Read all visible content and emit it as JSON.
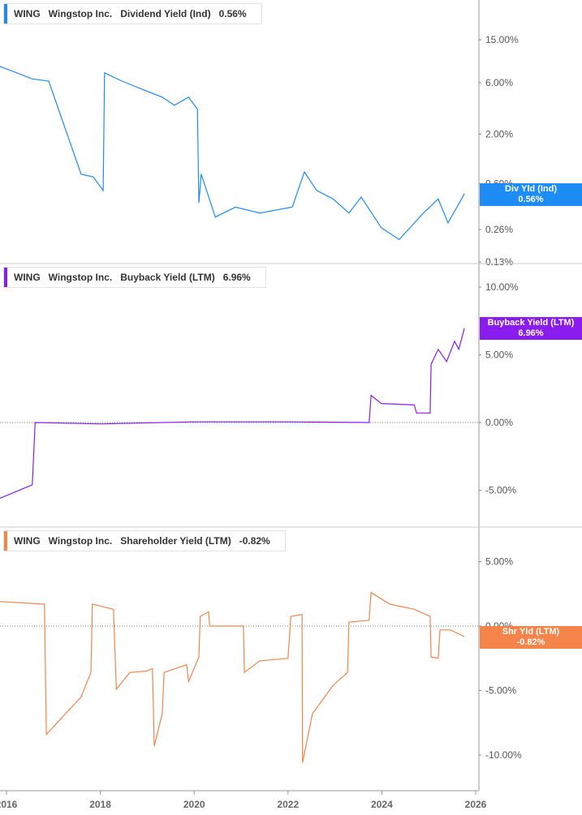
{
  "chart_data": [
    {
      "type": "line",
      "ticker": "WING",
      "company": "Wingstop Inc.",
      "series_name": "Dividend Yield (Ind)",
      "value_label": "0.56%",
      "tag_title": "Div Yld (Ind)",
      "tag_value": "0.56%",
      "color": "#1e8cf5",
      "scale": "log",
      "yticks": [
        "15.00%",
        "6.00%",
        "2.00%",
        "0.69%",
        "0.26%",
        "0.13%"
      ],
      "ytick_values": [
        15,
        6,
        2,
        0.69,
        0.26,
        0.13
      ],
      "x": [
        2015.86,
        2016.55,
        2016.9,
        2017.59,
        2017.85,
        2018.06,
        2018.09,
        2018.46,
        2018.89,
        2019.32,
        2019.58,
        2019.88,
        2020.07,
        2020.1,
        2020.15,
        2020.45,
        2020.88,
        2021.4,
        2022.09,
        2022.35,
        2022.61,
        2022.96,
        2023.3,
        2023.56,
        2023.99,
        2024.37,
        2024.86,
        2025.2,
        2025.41,
        2025.64,
        2025.76
      ],
      "y": [
        8.5,
        6.5,
        6.2,
        0.85,
        0.8,
        0.6,
        7.4,
        6.2,
        5.2,
        4.4,
        3.7,
        4.4,
        3.4,
        0.46,
        0.85,
        0.34,
        0.42,
        0.37,
        0.42,
        0.89,
        0.6,
        0.5,
        0.37,
        0.52,
        0.27,
        0.21,
        0.36,
        0.5,
        0.3,
        0.45,
        0.56
      ]
    },
    {
      "type": "line",
      "ticker": "WING",
      "company": "Wingstop Inc.",
      "series_name": "Buyback Yield (LTM)",
      "value_label": "6.96%",
      "tag_title": "Buyback Yield (LTM)",
      "tag_value": "6.96%",
      "color": "#8a1cf0",
      "scale": "linear",
      "yticks": [
        "10.00%",
        "5.00%",
        "0.00%",
        "-5.00%"
      ],
      "ytick_values": [
        10,
        5,
        0,
        -5
      ],
      "x": [
        2015.86,
        2016.55,
        2016.61,
        2018.0,
        2020.0,
        2022.0,
        2023.73,
        2023.77,
        2023.99,
        2024.69,
        2024.74,
        2025.03,
        2025.05,
        2025.2,
        2025.38,
        2025.55,
        2025.64,
        2025.76
      ],
      "y": [
        -5.6,
        -4.6,
        0,
        -0.1,
        0.05,
        0.05,
        0,
        2.0,
        1.4,
        1.3,
        0.7,
        0.7,
        4.3,
        5.4,
        4.5,
        6.0,
        5.4,
        6.96
      ]
    },
    {
      "type": "line",
      "ticker": "WING",
      "company": "Wingstop Inc.",
      "series_name": "Shareholder Yield (LTM)",
      "value_label": "-0.82%",
      "tag_title": "Shr Yld (LTM)",
      "tag_value": "-0.82%",
      "color": "#f5844a",
      "scale": "linear",
      "yticks": [
        "5.00%",
        "0.00%",
        "-5.00%",
        "-10.00%"
      ],
      "ytick_values": [
        5,
        0,
        -5,
        -10
      ],
      "x": [
        2015.86,
        2016.81,
        2016.85,
        2017.59,
        2017.8,
        2017.83,
        2018.28,
        2018.34,
        2018.63,
        2018.98,
        2019.11,
        2019.15,
        2019.32,
        2019.36,
        2019.84,
        2019.88,
        2020.1,
        2020.13,
        2020.31,
        2020.33,
        2021.05,
        2021.07,
        2021.4,
        2022.0,
        2022.06,
        2022.3,
        2022.31,
        2022.52,
        2022.96,
        2023.27,
        2023.3,
        2023.73,
        2023.77,
        2024.17,
        2024.69,
        2025.03,
        2025.05,
        2025.2,
        2025.24,
        2025.46,
        2025.76
      ],
      "y": [
        1.9,
        1.7,
        -8.4,
        -5.5,
        -3.6,
        1.7,
        1.3,
        -4.9,
        -3.6,
        -3.5,
        -3.3,
        -9.3,
        -6.8,
        -3.6,
        -3.0,
        -4.3,
        -2.4,
        0.75,
        1.1,
        0,
        0,
        -3.6,
        -2.7,
        -2.5,
        0.75,
        0.9,
        -10.6,
        -6.8,
        -4.6,
        -3.6,
        0.3,
        0.45,
        2.6,
        1.7,
        1.3,
        0.75,
        -2.4,
        -2.5,
        -0.3,
        -0.3,
        -0.82
      ]
    }
  ],
  "xticks": [
    "2016",
    "2018",
    "2020",
    "2022",
    "2024",
    "2026"
  ],
  "xtick_values": [
    2016,
    2018,
    2020,
    2022,
    2024,
    2026
  ]
}
